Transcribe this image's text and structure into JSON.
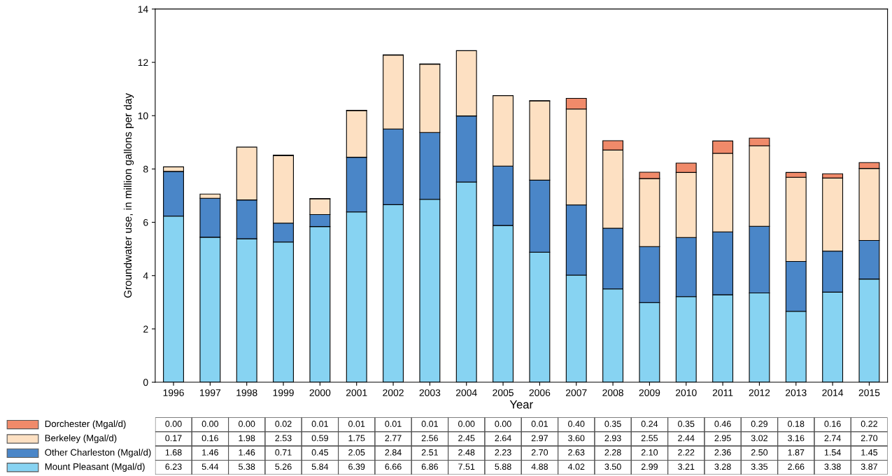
{
  "chart_data": {
    "type": "bar",
    "stacked": true,
    "xlabel": "Year",
    "ylabel": "Groundwater use, in million gallons per day",
    "categories": [
      "1996",
      "1997",
      "1998",
      "1999",
      "2000",
      "2001",
      "2002",
      "2003",
      "2004",
      "2005",
      "2006",
      "2007",
      "2008",
      "2009",
      "2010",
      "2011",
      "2012",
      "2013",
      "2014",
      "2015"
    ],
    "series": [
      {
        "name": "Mount Pleasant (Mgal/d)",
        "color": "#87d3f2",
        "values": [
          6.23,
          5.44,
          5.38,
          5.26,
          5.84,
          6.39,
          6.66,
          6.86,
          7.51,
          5.88,
          4.88,
          4.02,
          3.5,
          2.99,
          3.21,
          3.28,
          3.35,
          2.66,
          3.38,
          3.87
        ],
        "value_labels": [
          "6.23",
          "5.44",
          "5.38",
          "5.26",
          "5.84",
          "6.39",
          "6.66",
          "6.86",
          "7.51",
          "5.88",
          "4.88",
          "4.02",
          "3.50",
          "2.99",
          "3.21",
          "3.28",
          "3.35",
          "2.66",
          "3.38",
          "3.87"
        ]
      },
      {
        "name": "Other Charleston (Mgal/d)",
        "color": "#4a86c8",
        "values": [
          1.68,
          1.46,
          1.46,
          0.71,
          0.45,
          2.05,
          2.84,
          2.51,
          2.48,
          2.23,
          2.7,
          2.63,
          2.28,
          2.1,
          2.22,
          2.36,
          2.5,
          1.87,
          1.54,
          1.45
        ],
        "value_labels": [
          "1.68",
          "1.46",
          "1.46",
          "0.71",
          "0.45",
          "2.05",
          "2.84",
          "2.51",
          "2.48",
          "2.23",
          "2.70",
          "2.63",
          "2.28",
          "2.10",
          "2.22",
          "2.36",
          "2.50",
          "1.87",
          "1.54",
          "1.45"
        ]
      },
      {
        "name": "Berkeley (Mgal/d)",
        "color": "#fde0c2",
        "values": [
          0.17,
          0.16,
          1.98,
          2.53,
          0.59,
          1.75,
          2.77,
          2.56,
          2.45,
          2.64,
          2.97,
          3.6,
          2.93,
          2.55,
          2.44,
          2.95,
          3.02,
          3.16,
          2.74,
          2.7
        ],
        "value_labels": [
          "0.17",
          "0.16",
          "1.98",
          "2.53",
          "0.59",
          "1.75",
          "2.77",
          "2.56",
          "2.45",
          "2.64",
          "2.97",
          "3.60",
          "2.93",
          "2.55",
          "2.44",
          "2.95",
          "3.02",
          "3.16",
          "2.74",
          "2.70"
        ]
      },
      {
        "name": "Dorchester (Mgal/d)",
        "color": "#f08a6a",
        "values": [
          0.0,
          0.0,
          0.0,
          0.02,
          0.01,
          0.01,
          0.01,
          0.01,
          0.0,
          0.0,
          0.01,
          0.4,
          0.35,
          0.24,
          0.35,
          0.46,
          0.29,
          0.18,
          0.16,
          0.22
        ],
        "value_labels": [
          "0.00",
          "0.00",
          "0.00",
          "0.02",
          "0.01",
          "0.01",
          "0.01",
          "0.01",
          "0.00",
          "0.00",
          "0.01",
          "0.40",
          "0.35",
          "0.24",
          "0.35",
          "0.46",
          "0.29",
          "0.18",
          "0.16",
          "0.22"
        ]
      }
    ],
    "ylim": [
      0,
      14
    ],
    "yticks": [
      0,
      2,
      4,
      6,
      8,
      10,
      12,
      14
    ],
    "grid": false,
    "legend": "bottom left"
  }
}
